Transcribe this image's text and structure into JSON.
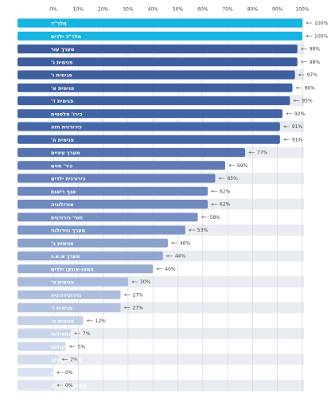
{
  "chart_data": {
    "type": "bar",
    "orientation": "horizontal",
    "categories": [
      "מלר\"ד",
      "מלר\"ד ילדים",
      "מערך עור",
      "פנימית ג'",
      "פנימית ו'",
      "פנימית א'",
      "פנימית ד'",
      "כירו' פלסטית",
      "כירורגית חזה",
      "פנימית ה'",
      "מערך עיניים",
      "כיר' חזים",
      "כירורגית ילדים",
      "אגף ריאות",
      "אורולוגיה",
      "חטי' כירורגית",
      "מערך נוירולוגי",
      "פנימית ב'",
      "מערך א.א.ג",
      "המטו-אונקו ילדים",
      "פנימית ט'",
      "נוירוכירורגיה",
      "פנימית ז'",
      "פנימית ח'",
      "מערך המטולוגי",
      "מערך אונקולוגי",
      "אורתו' אונקו",
      "חטי' אורתופדית",
      "אנדוקרינולוגיה"
    ],
    "values": [
      100,
      100,
      98,
      98,
      97,
      96,
      95,
      92,
      91,
      91,
      77,
      69,
      65,
      62,
      62,
      58,
      53,
      46,
      44,
      40,
      30,
      27,
      27,
      12,
      7,
      5,
      2,
      0,
      0
    ],
    "value_labels": [
      "100%",
      "100%",
      "98%",
      "98%",
      "97%",
      "96%",
      "95%",
      "92%",
      "91%",
      "91%",
      "77%",
      "69%",
      "65%",
      "62%",
      "62%",
      "58%",
      "53%",
      "46%",
      "44%",
      "40%",
      "30%",
      "27%",
      "27%",
      "12%",
      "7%",
      "5%",
      "2%",
      "0%",
      "0%"
    ],
    "colors": [
      "#17b4e2",
      "#17b4e2",
      "#3c5c9c",
      "#3d5d9e",
      "#3e5fa0",
      "#3f60a1",
      "#4062a3",
      "#4365a6",
      "#4567a8",
      "#4668aa",
      "#5571b0",
      "#5f7ab6",
      "#6680ba",
      "#6c86be",
      "#6f88bf",
      "#7690c3",
      "#7d96c7",
      "#8aa1cd",
      "#90a5d0",
      "#98add4",
      "#a8b9db",
      "#adbedd",
      "#b1c1df",
      "#c3cfe6",
      "#c9d3e9",
      "#ced7eb",
      "#d3dbed",
      "#d9e0f0",
      "#dde3f2"
    ],
    "xlim": [
      0,
      100
    ],
    "xticks": [
      {
        "value": 0,
        "label": "0%"
      },
      {
        "value": 10,
        "label": "10%"
      },
      {
        "value": 20,
        "label": "20%"
      },
      {
        "value": 30,
        "label": "30%"
      },
      {
        "value": 40,
        "label": "40%"
      },
      {
        "value": 50,
        "label": "50%"
      },
      {
        "value": 60,
        "label": "60%"
      },
      {
        "value": 70,
        "label": "70%"
      },
      {
        "value": 80,
        "label": "80%"
      },
      {
        "value": 90,
        "label": "90%"
      },
      {
        "value": 100,
        "label": "100%"
      }
    ],
    "grid": true
  }
}
